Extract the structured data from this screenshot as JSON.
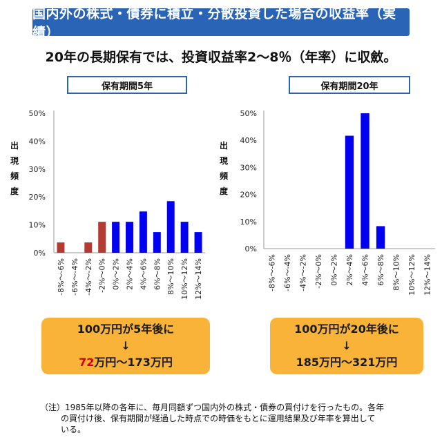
{
  "banner": "国内外の株式・債券に積立・分散投資した場合の収益率（実績）",
  "subtitle": "20年の長期保有では、投資収益率2～8％（年率）に収斂。",
  "colors": {
    "banner": "#2a64b6",
    "negative": "#b33b34",
    "positive": "#0000f0",
    "result_box": "#f9b339",
    "highlight": "#d00000"
  },
  "ylabel": [
    "出",
    "現",
    "頻",
    "度"
  ],
  "chart_data": [
    {
      "type": "bar",
      "title": "保有期間5年",
      "ylabel": "出現頻度",
      "ylim": [
        0,
        50
      ],
      "yticks": [
        "0%",
        "10%",
        "20%",
        "30%",
        "40%",
        "50%"
      ],
      "categories": [
        "-8%～-6%",
        "-6%～-4%",
        "-4%～-2%",
        "-2%～0%",
        "0%～2%",
        "2%～4%",
        "4%～6%",
        "6%～8%",
        "8%～10%",
        "10%～12%",
        "12%～14%"
      ],
      "values": [
        3.7,
        0,
        3.7,
        11.1,
        11.1,
        11.1,
        14.8,
        7.4,
        18.5,
        11.1,
        7.4
      ],
      "grid": false
    },
    {
      "type": "bar",
      "title": "保有期間20年",
      "ylabel": "出現頻度",
      "ylim": [
        0,
        50
      ],
      "yticks": [
        "0%",
        "10%",
        "20%",
        "30%",
        "40%",
        "50%"
      ],
      "categories": [
        "-8%～-6%",
        "-6%～-4%",
        "-4%～-2%",
        "-2%～0%",
        "0%～2%",
        "2%～4%",
        "4%～6%",
        "6%～8%",
        "8%～10%",
        "10%～12%",
        "12%～14%"
      ],
      "values": [
        0,
        0,
        0,
        0,
        0,
        41.7,
        50.0,
        8.3,
        0,
        0,
        0
      ],
      "grid": false
    }
  ],
  "results": [
    {
      "line1": "100万円が5年後に",
      "arrow": "↓",
      "low": "72",
      "rest": "万円～173万円"
    },
    {
      "line1": "100万円が20年後に",
      "arrow": "↓",
      "low": "185",
      "rest": "万円～321万円"
    }
  ],
  "note": {
    "line1": "（注）1985年以降の各年に、毎月同額ずつ国内外の株式・債券の買付けを行ったもの。各年",
    "line2": "の買付け後、保有期間が経過した時点での時価をもとに運用結果及び年率を算出して",
    "line3": "いる。"
  }
}
